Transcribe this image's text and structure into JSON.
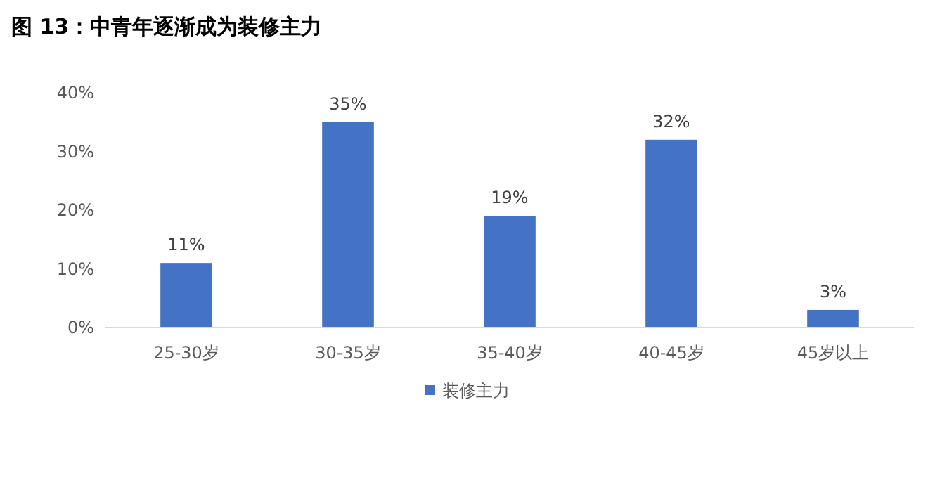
{
  "chart_data": {
    "type": "bar",
    "title": "图 13：中青年逐渐成为装修主力",
    "categories": [
      "25-30岁",
      "30-35岁",
      "35-40岁",
      "40-45岁",
      "45岁以上"
    ],
    "series": [
      {
        "name": "装修主力",
        "color": "#4472c4",
        "values": [
          11,
          35,
          19,
          32,
          3
        ],
        "value_labels": [
          "11%",
          "35%",
          "19%",
          "32%",
          "3%"
        ]
      }
    ],
    "ylim": [
      0,
      40
    ],
    "yticks": [
      {
        "value": 0,
        "label": "0%"
      },
      {
        "value": 10,
        "label": "10%"
      },
      {
        "value": 20,
        "label": "20%"
      },
      {
        "value": 30,
        "label": "30%"
      },
      {
        "value": 40,
        "label": "40%"
      }
    ],
    "legend": "bottom"
  }
}
